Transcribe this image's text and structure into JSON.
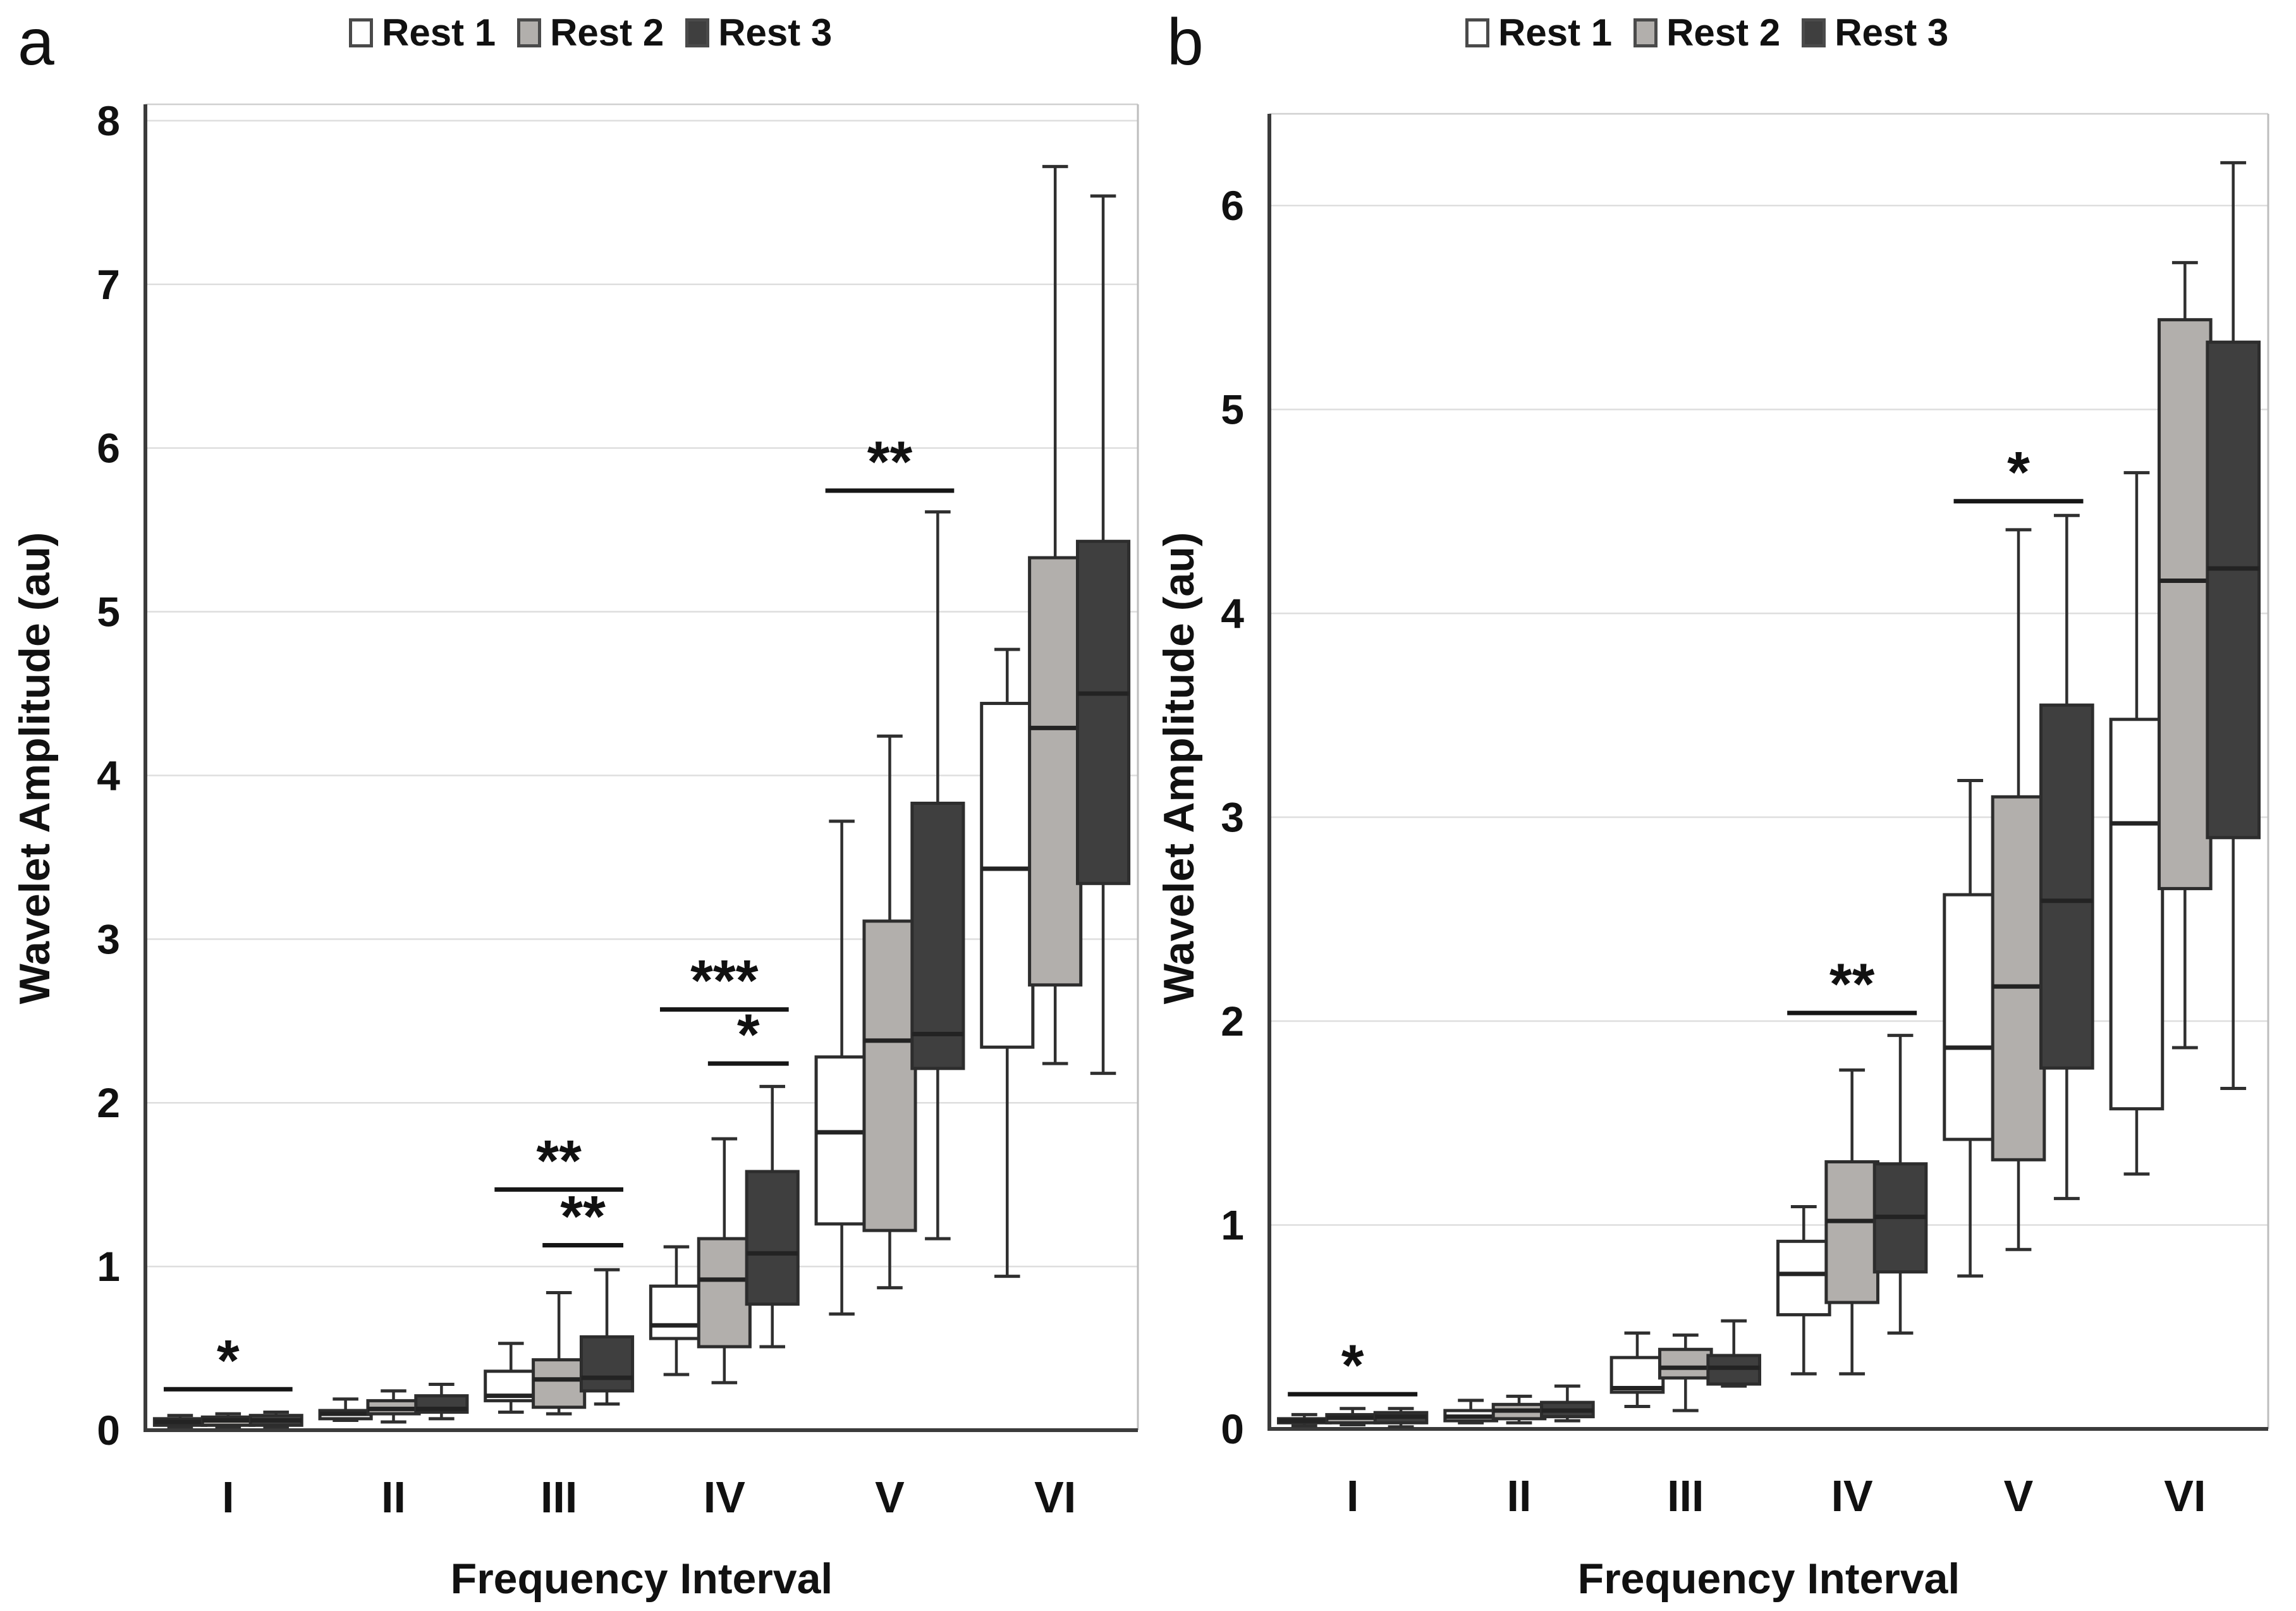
{
  "figure": {
    "panels": [
      {
        "letter": "a"
      },
      {
        "letter": "b"
      }
    ]
  },
  "chart_data": [
    {
      "type": "boxplot",
      "panel": "a",
      "xlabel": "Frequency Interval",
      "ylabel": "Wavelet Amplitude (au)",
      "categories": [
        "I",
        "II",
        "III",
        "IV",
        "V",
        "VI"
      ],
      "ylim": [
        0,
        8.1
      ],
      "yticks": [
        0,
        1,
        2,
        3,
        4,
        5,
        6,
        7,
        8
      ],
      "grid": true,
      "legend_position": "top",
      "series": [
        {
          "name": "Rest 1",
          "fill": "#ffffff",
          "boxes": [
            {
              "low": 0.02,
              "q1": 0.03,
              "median": 0.05,
              "q3": 0.07,
              "high": 0.09
            },
            {
              "low": 0.06,
              "q1": 0.07,
              "median": 0.1,
              "q3": 0.12,
              "high": 0.19
            },
            {
              "low": 0.11,
              "q1": 0.18,
              "median": 0.21,
              "q3": 0.36,
              "high": 0.53
            },
            {
              "low": 0.34,
              "q1": 0.56,
              "median": 0.64,
              "q3": 0.88,
              "high": 1.12
            },
            {
              "low": 0.71,
              "q1": 1.26,
              "median": 1.82,
              "q3": 2.28,
              "high": 3.72
            },
            {
              "low": 0.94,
              "q1": 2.34,
              "median": 3.43,
              "q3": 4.44,
              "high": 4.77
            }
          ]
        },
        {
          "name": "Rest 2",
          "fill": "#b2afac",
          "boxes": [
            {
              "low": 0.02,
              "q1": 0.03,
              "median": 0.06,
              "q3": 0.08,
              "high": 0.1
            },
            {
              "low": 0.05,
              "q1": 0.1,
              "median": 0.13,
              "q3": 0.18,
              "high": 0.24
            },
            {
              "low": 0.1,
              "q1": 0.14,
              "median": 0.31,
              "q3": 0.43,
              "high": 0.84
            },
            {
              "low": 0.29,
              "q1": 0.51,
              "median": 0.92,
              "q3": 1.17,
              "high": 1.78
            },
            {
              "low": 0.87,
              "q1": 1.22,
              "median": 2.38,
              "q3": 3.11,
              "high": 4.24
            },
            {
              "low": 2.24,
              "q1": 2.72,
              "median": 4.29,
              "q3": 5.33,
              "high": 7.72
            }
          ]
        },
        {
          "name": "Rest 3",
          "fill": "#3f3f3f",
          "boxes": [
            {
              "low": 0.02,
              "q1": 0.03,
              "median": 0.06,
              "q3": 0.09,
              "high": 0.11
            },
            {
              "low": 0.07,
              "q1": 0.11,
              "median": 0.13,
              "q3": 0.21,
              "high": 0.28
            },
            {
              "low": 0.16,
              "q1": 0.24,
              "median": 0.32,
              "q3": 0.57,
              "high": 0.98
            },
            {
              "low": 0.51,
              "q1": 0.77,
              "median": 1.08,
              "q3": 1.58,
              "high": 2.1
            },
            {
              "low": 1.17,
              "q1": 2.21,
              "median": 2.42,
              "q3": 3.83,
              "high": 5.61
            },
            {
              "low": 2.18,
              "q1": 3.34,
              "median": 4.5,
              "q3": 5.43,
              "high": 7.54
            }
          ]
        }
      ],
      "annotations": [
        {
          "over": "I",
          "from": "Rest 1",
          "to": "Rest 3",
          "label": "*",
          "y": 0.25
        },
        {
          "over": "III",
          "from": "Rest 1",
          "to": "Rest 3",
          "label": "**",
          "y": 1.47
        },
        {
          "over": "III",
          "from": "Rest 2",
          "to": "Rest 3",
          "label": "**",
          "y": 1.13
        },
        {
          "over": "IV",
          "from": "Rest 1",
          "to": "Rest 3",
          "label": "***",
          "y": 2.57
        },
        {
          "over": "IV",
          "from": "Rest 2",
          "to": "Rest 3",
          "label": "*",
          "y": 2.24
        },
        {
          "over": "V",
          "from": "Rest 1",
          "to": "Rest 3",
          "label": "**",
          "y": 5.74
        }
      ]
    },
    {
      "type": "boxplot",
      "panel": "b",
      "xlabel": "Frequency Interval",
      "ylabel": "Wavelet Amplitude (au)",
      "categories": [
        "I",
        "II",
        "III",
        "IV",
        "V",
        "VI"
      ],
      "ylim": [
        0,
        6.45
      ],
      "yticks": [
        0,
        1,
        2,
        3,
        4,
        5,
        6
      ],
      "grid": true,
      "legend_position": "top",
      "series": [
        {
          "name": "Rest 1",
          "fill": "#ffffff",
          "boxes": [
            {
              "low": 0.015,
              "q1": 0.03,
              "median": 0.04,
              "q3": 0.05,
              "high": 0.07
            },
            {
              "low": 0.03,
              "q1": 0.04,
              "median": 0.06,
              "q3": 0.09,
              "high": 0.14
            },
            {
              "low": 0.11,
              "q1": 0.18,
              "median": 0.2,
              "q3": 0.35,
              "high": 0.47
            },
            {
              "low": 0.27,
              "q1": 0.56,
              "median": 0.76,
              "q3": 0.92,
              "high": 1.09
            },
            {
              "low": 0.75,
              "q1": 1.42,
              "median": 1.87,
              "q3": 2.62,
              "high": 3.18
            },
            {
              "low": 1.25,
              "q1": 1.57,
              "median": 2.97,
              "q3": 3.48,
              "high": 4.69
            }
          ]
        },
        {
          "name": "Rest 2",
          "fill": "#b2afac",
          "boxes": [
            {
              "low": 0.02,
              "q1": 0.03,
              "median": 0.055,
              "q3": 0.07,
              "high": 0.1
            },
            {
              "low": 0.03,
              "q1": 0.05,
              "median": 0.09,
              "q3": 0.12,
              "high": 0.16
            },
            {
              "low": 0.09,
              "q1": 0.25,
              "median": 0.3,
              "q3": 0.39,
              "high": 0.46
            },
            {
              "low": 0.27,
              "q1": 0.62,
              "median": 1.02,
              "q3": 1.31,
              "high": 1.76
            },
            {
              "low": 0.88,
              "q1": 1.32,
              "median": 2.17,
              "q3": 3.1,
              "high": 4.41
            },
            {
              "low": 1.87,
              "q1": 2.65,
              "median": 4.16,
              "q3": 5.44,
              "high": 5.72
            }
          ]
        },
        {
          "name": "Rest 3",
          "fill": "#3f3f3f",
          "boxes": [
            {
              "low": 0.01,
              "q1": 0.03,
              "median": 0.06,
              "q3": 0.08,
              "high": 0.1
            },
            {
              "low": 0.04,
              "q1": 0.06,
              "median": 0.09,
              "q3": 0.13,
              "high": 0.21
            },
            {
              "low": 0.21,
              "q1": 0.22,
              "median": 0.3,
              "q3": 0.36,
              "high": 0.53
            },
            {
              "low": 0.47,
              "q1": 0.77,
              "median": 1.04,
              "q3": 1.3,
              "high": 1.93
            },
            {
              "low": 1.13,
              "q1": 1.77,
              "median": 2.59,
              "q3": 3.55,
              "high": 4.48
            },
            {
              "low": 1.67,
              "q1": 2.9,
              "median": 4.22,
              "q3": 5.33,
              "high": 6.21
            }
          ]
        }
      ],
      "annotations": [
        {
          "over": "I",
          "from": "Rest 1",
          "to": "Rest 3",
          "label": "*",
          "y": 0.17
        },
        {
          "over": "IV",
          "from": "Rest 1",
          "to": "Rest 3",
          "label": "**",
          "y": 2.04
        },
        {
          "over": "V",
          "from": "Rest 1",
          "to": "Rest 3",
          "label": "*",
          "y": 4.55
        }
      ]
    }
  ]
}
